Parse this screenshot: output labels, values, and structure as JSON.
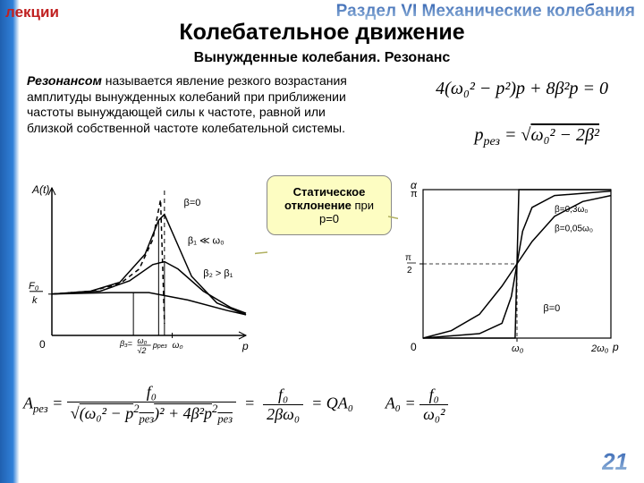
{
  "header": {
    "left": "лекции",
    "right": "Раздел VI Механические колебания"
  },
  "title": "Колебательное движение",
  "subtitle": "Вынужденные колебания. Резонанс",
  "definition": {
    "term": "Резонансом",
    "body": " называется явление резкого возрастания амплитуды вынужденных колебаний при приближении частоты вынуждающей силы к частоте, равной или близкой собственной частоте колебательной системы."
  },
  "formula1": "4(ω₀² − p²)p + 8β²p = 0",
  "formula2_lhs": "p",
  "formula2_sub": "рез",
  "formula2_rhs": "ω₀² − 2β²",
  "callout": {
    "bold": "Статическое отклонение",
    "rest": "  при p=0"
  },
  "chart1": {
    "type": "resonance-amplitude",
    "background_color": "#ffffff",
    "axis_color": "#000000",
    "xlabel": "p",
    "ylabel": "A(t)",
    "x_ticks": [
      "β₃=ω₀/√2",
      "pрез",
      "ω₀"
    ],
    "y_marker": "F₀/k",
    "curves": [
      {
        "label": "β=0",
        "dashed": true,
        "color": "#000000",
        "pts": [
          [
            0,
            0.28
          ],
          [
            0.2,
            0.3
          ],
          [
            0.35,
            0.35
          ],
          [
            0.45,
            0.45
          ],
          [
            0.52,
            0.65
          ],
          [
            0.56,
            0.92
          ],
          [
            0.58,
            0.08
          ]
        ],
        "asymptote_x": 0.58
      },
      {
        "label": "β₁ ≪ ω₀",
        "dashed": false,
        "color": "#000000",
        "pts": [
          [
            0,
            0.28
          ],
          [
            0.2,
            0.3
          ],
          [
            0.35,
            0.36
          ],
          [
            0.48,
            0.55
          ],
          [
            0.55,
            0.78
          ],
          [
            0.58,
            0.82
          ],
          [
            0.62,
            0.7
          ],
          [
            0.72,
            0.4
          ],
          [
            0.85,
            0.22
          ],
          [
            1.0,
            0.14
          ]
        ]
      },
      {
        "label": "β₂ > β₁",
        "dashed": false,
        "color": "#000000",
        "pts": [
          [
            0,
            0.28
          ],
          [
            0.25,
            0.3
          ],
          [
            0.4,
            0.37
          ],
          [
            0.52,
            0.48
          ],
          [
            0.58,
            0.5
          ],
          [
            0.65,
            0.45
          ],
          [
            0.78,
            0.3
          ],
          [
            0.92,
            0.19
          ],
          [
            1.0,
            0.15
          ]
        ]
      },
      {
        "label": "β₃",
        "dashed": false,
        "color": "#000000",
        "pts": [
          [
            0,
            0.28
          ],
          [
            0.3,
            0.29
          ],
          [
            0.5,
            0.29
          ],
          [
            0.7,
            0.24
          ],
          [
            0.9,
            0.17
          ],
          [
            1.0,
            0.14
          ]
        ]
      }
    ]
  },
  "chart2": {
    "type": "phase",
    "background_color": "#ffffff",
    "axis_color": "#000000",
    "xlabel": "p",
    "ylabel": "α",
    "y_ticks": [
      "π",
      "π/2"
    ],
    "x_ticks": [
      "ω₀",
      "2ω₀"
    ],
    "curves": [
      {
        "label": "β=0",
        "color": "#000000",
        "pts": [
          [
            0,
            0.0
          ],
          [
            0.49,
            0.0
          ],
          [
            0.5,
            0.5
          ],
          [
            0.51,
            1.0
          ],
          [
            1.0,
            1.0
          ]
        ]
      },
      {
        "label": "β=0,3ω₀",
        "color": "#000000",
        "pts": [
          [
            0,
            0.0
          ],
          [
            0.15,
            0.05
          ],
          [
            0.3,
            0.16
          ],
          [
            0.42,
            0.35
          ],
          [
            0.5,
            0.5
          ],
          [
            0.58,
            0.65
          ],
          [
            0.7,
            0.82
          ],
          [
            0.85,
            0.92
          ],
          [
            1.0,
            0.96
          ]
        ]
      },
      {
        "label": "β=0,05ω₀",
        "color": "#000000",
        "pts": [
          [
            0,
            0.0
          ],
          [
            0.3,
            0.03
          ],
          [
            0.42,
            0.1
          ],
          [
            0.47,
            0.28
          ],
          [
            0.5,
            0.5
          ],
          [
            0.53,
            0.72
          ],
          [
            0.58,
            0.88
          ],
          [
            0.7,
            0.96
          ],
          [
            1.0,
            0.99
          ]
        ]
      }
    ]
  },
  "bottom": {
    "Arez": "A",
    "Arez_sub": "рез",
    "f0": "f₀",
    "den1a": "(ω₀² − p",
    "den1b": "рез",
    "den1c": ")² + 4β²p",
    "den1d": "рез",
    "mid_num": "f₀",
    "mid_den": "2βω₀",
    "QA": "QA₀",
    "A0": "A₀",
    "r_num": "f₀",
    "r_den": "ω₀²"
  },
  "page": "21"
}
